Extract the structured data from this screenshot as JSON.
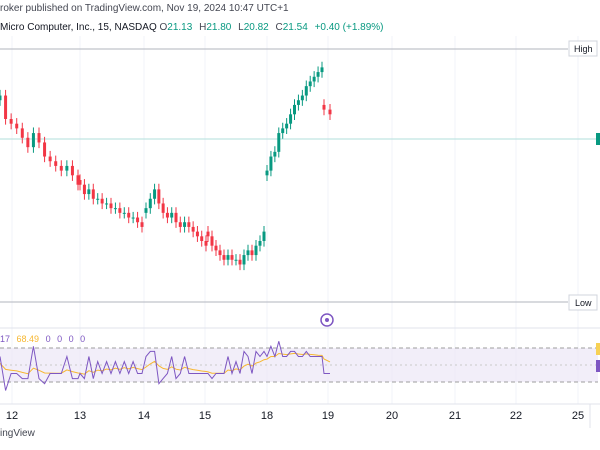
{
  "header": {
    "published_line": "roker published on TradingView.com, Nov 19, 2024 10:47 UTC+1",
    "symbol_line": "Micro Computer, Inc., 15, NASDAQ",
    "o_label": "O",
    "o_value": "21.13",
    "h_label": "H",
    "h_value": "21.80",
    "l_label": "L",
    "l_value": "20.82",
    "c_label": "C",
    "c_value": "21.54",
    "change": "+0.40 (+1.89%)"
  },
  "levels": {
    "high_label": "High",
    "low_label": "Low"
  },
  "rsi_legend": {
    "length": "17",
    "value": "68.49",
    "zeros": [
      "0",
      "0",
      "0",
      "0"
    ]
  },
  "footer": {
    "brand": "ingView"
  },
  "colors": {
    "up": "#089981",
    "down": "#f23645",
    "rsi_line": "#7e57c2",
    "rsi_ma": "#f7b731",
    "rsi_band": "#ede7f6"
  },
  "chart_data": {
    "type": "candlestick",
    "x_ticks": [
      "12",
      "13",
      "14",
      "15",
      "18",
      "19",
      "20",
      "21",
      "22",
      "25"
    ],
    "session_closes": [
      {
        "session": "12",
        "close_points": [
          44,
          39,
          38,
          37,
          35,
          33,
          36,
          34,
          31,
          30,
          29,
          28,
          29,
          27,
          25
        ]
      },
      {
        "session": "13",
        "close_points": [
          25,
          23,
          24,
          22,
          22,
          21,
          21,
          20,
          20,
          19,
          19,
          18,
          18,
          17,
          16
        ]
      },
      {
        "session": "14",
        "close_points": [
          20,
          22,
          24,
          21,
          19,
          18,
          19,
          17,
          16,
          17,
          16,
          15,
          14,
          13,
          12
        ]
      },
      {
        "session": "15",
        "close_points": [
          14,
          12,
          11,
          10,
          9,
          10,
          9,
          9,
          8,
          10,
          11,
          10,
          12,
          13,
          15
        ]
      },
      {
        "session": "18",
        "close_points": [
          28,
          31,
          32,
          36,
          37,
          38,
          40,
          42,
          43,
          44,
          46,
          47,
          48,
          49,
          50
        ]
      },
      {
        "session": "19",
        "close_points": [
          41,
          40
        ]
      }
    ],
    "rsi": {
      "length": 17,
      "upper_band": 70,
      "lower_band": 30,
      "last_value": 68.49
    }
  }
}
